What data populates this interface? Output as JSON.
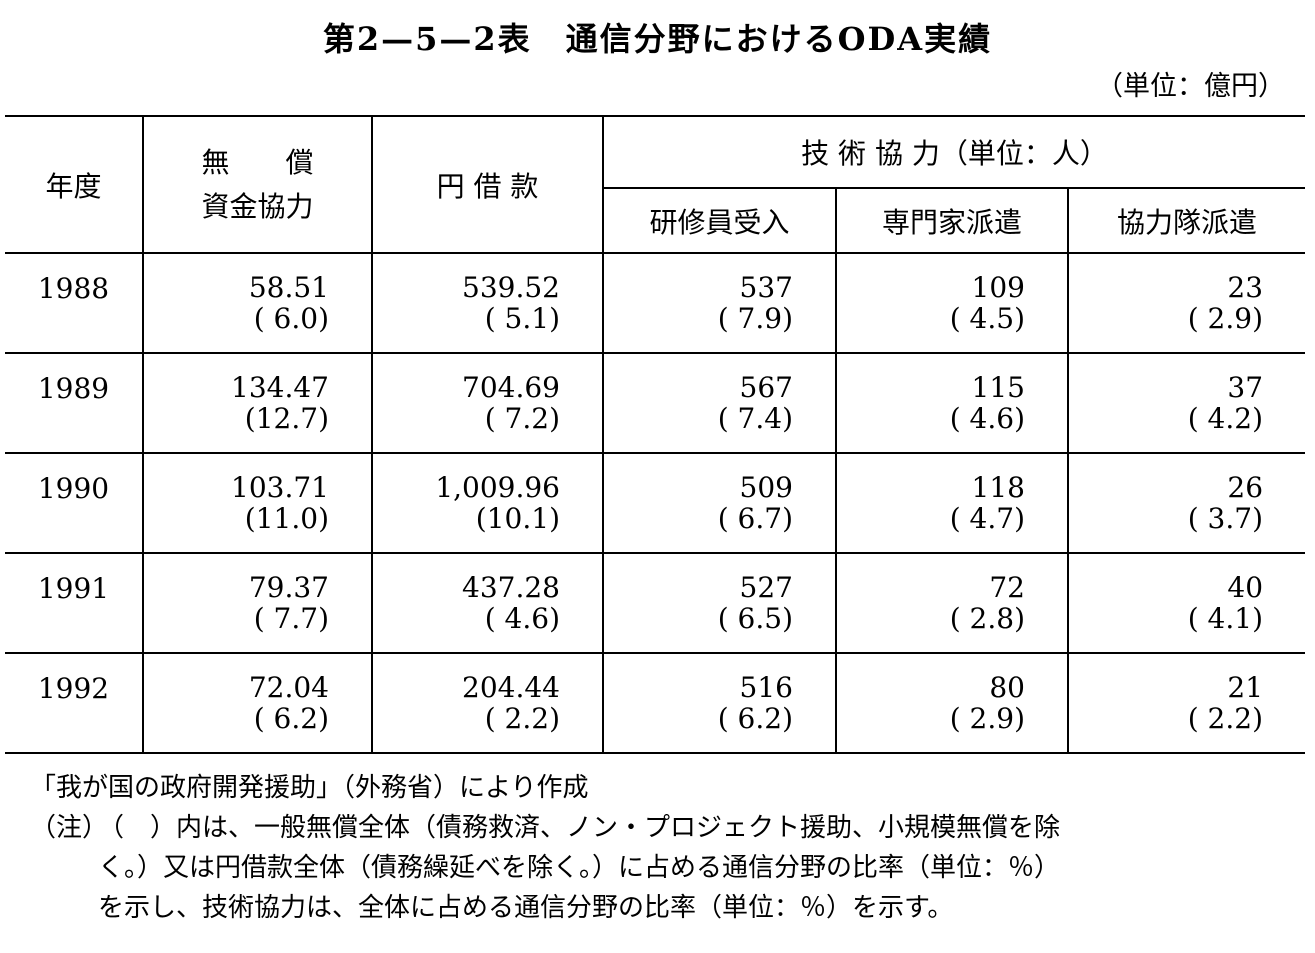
{
  "title": "第2—5—2表　通信分野におけるODA実績",
  "unit": "（単位：億円）",
  "table": {
    "header": {
      "year": "年度",
      "grant": [
        "無　　償",
        "資金協力"
      ],
      "loan": "円 借 款",
      "technical": "技 術 協 力（単位：人）",
      "technical_sub": [
        "研修員受入",
        "専門家派遣",
        "協力隊派遣"
      ]
    },
    "rows": [
      [
        "1988",
        [
          "58.51",
          "( 6.0)"
        ],
        [
          "539.52",
          "( 5.1)"
        ],
        [
          "537",
          "( 7.9)"
        ],
        [
          "109",
          "( 4.5)"
        ],
        [
          "23",
          "( 2.9)"
        ]
      ],
      [
        "1989",
        [
          "134.47",
          "(12.7)"
        ],
        [
          "704.69",
          "( 7.2)"
        ],
        [
          "567",
          "( 7.4)"
        ],
        [
          "115",
          "( 4.6)"
        ],
        [
          "37",
          "( 4.2)"
        ]
      ],
      [
        "1990",
        [
          "103.71",
          "(11.0)"
        ],
        [
          "1,009.96",
          "(10.1)"
        ],
        [
          "509",
          "( 6.7)"
        ],
        [
          "118",
          "( 4.7)"
        ],
        [
          "26",
          "( 3.7)"
        ]
      ],
      [
        "1991",
        [
          "79.37",
          "( 7.7)"
        ],
        [
          "437.28",
          "( 4.6)"
        ],
        [
          "527",
          "( 6.5)"
        ],
        [
          "72",
          "( 2.8)"
        ],
        [
          "40",
          "( 4.1)"
        ]
      ],
      [
        "1992",
        [
          "72.04",
          "( 6.2)"
        ],
        [
          "204.44",
          "( 2.2)"
        ],
        [
          "516",
          "( 6.2)"
        ],
        [
          "80",
          "( 2.9)"
        ],
        [
          "21",
          "( 2.2)"
        ]
      ]
    ]
  },
  "notes": {
    "source": "「我が国の政府開発援助」（外務省）により作成",
    "label": "（注）",
    "lines": [
      "（　）内は、一般無償全体（債務救済、ノン・プロジェクト援助、小規模無償を除",
      "く。）又は円借款全体（債務繰延べを除く。）に占める通信分野の比率（単位：％）",
      "を示し、技術協力は、全体に占める通信分野の比率（単位：％）を示す。"
    ]
  }
}
